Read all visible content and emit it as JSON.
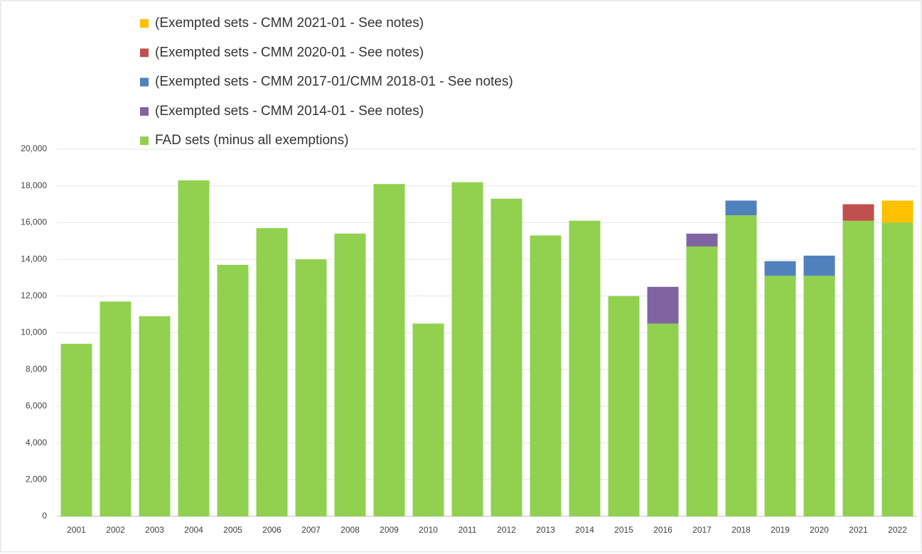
{
  "chart_data": {
    "type": "stacked-bar",
    "categories": [
      "2001",
      "2002",
      "2003",
      "2004",
      "2005",
      "2006",
      "2007",
      "2008",
      "2009",
      "2010",
      "2011",
      "2012",
      "2013",
      "2014",
      "2015",
      "2016",
      "2017",
      "2018",
      "2019",
      "2020",
      "2021",
      "2022"
    ],
    "series": [
      {
        "name": "FAD sets (minus all exemptions)",
        "color": "#92d050",
        "values": [
          9400,
          11700,
          10900,
          18300,
          13700,
          15700,
          14000,
          15400,
          18100,
          10500,
          18200,
          17300,
          15300,
          16100,
          12000,
          10500,
          14700,
          16400,
          13100,
          13100,
          16100,
          16000
        ]
      },
      {
        "name": "(Exempted sets - CMM 2014-01 - See notes)",
        "color": "#8064a2",
        "values": [
          null,
          null,
          null,
          null,
          null,
          null,
          null,
          null,
          null,
          null,
          null,
          null,
          null,
          null,
          null,
          2000,
          700,
          null,
          null,
          null,
          null,
          null
        ]
      },
      {
        "name": "(Exempted sets - CMM 2017-01/CMM 2018-01 - See notes)",
        "color": "#4f81bd",
        "values": [
          null,
          null,
          null,
          null,
          null,
          null,
          null,
          null,
          null,
          null,
          null,
          null,
          null,
          null,
          null,
          null,
          null,
          800,
          800,
          1100,
          null,
          null
        ]
      },
      {
        "name": "(Exempted sets - CMM 2020-01 - See notes)",
        "color": "#c0504d",
        "values": [
          null,
          null,
          null,
          null,
          null,
          null,
          null,
          null,
          null,
          null,
          null,
          null,
          null,
          null,
          null,
          null,
          null,
          null,
          null,
          null,
          900,
          null
        ]
      },
      {
        "name": "(Exempted sets - CMM 2021-01 - See notes)",
        "color": "#ffc000",
        "values": [
          null,
          null,
          null,
          null,
          null,
          null,
          null,
          null,
          null,
          null,
          null,
          null,
          null,
          null,
          null,
          null,
          null,
          null,
          null,
          null,
          null,
          1200
        ]
      }
    ],
    "ylim": [
      0,
      20000
    ],
    "yticks": [
      0,
      {
        "value": 2000,
        "label": "2,000"
      },
      {
        "value": 4000,
        "label": "4,000"
      },
      {
        "value": 6000,
        "label": "6,000"
      },
      {
        "value": 8000,
        "label": "8,000"
      },
      {
        "value": 10000,
        "label": "10,000"
      },
      {
        "value": 12000,
        "label": "12,000"
      },
      {
        "value": 14000,
        "label": "14,000"
      },
      {
        "value": 16000,
        "label": "16,000"
      },
      {
        "value": 18000,
        "label": "18,000"
      },
      {
        "value": 20000,
        "label": "20,000"
      }
    ],
    "grid": true
  }
}
